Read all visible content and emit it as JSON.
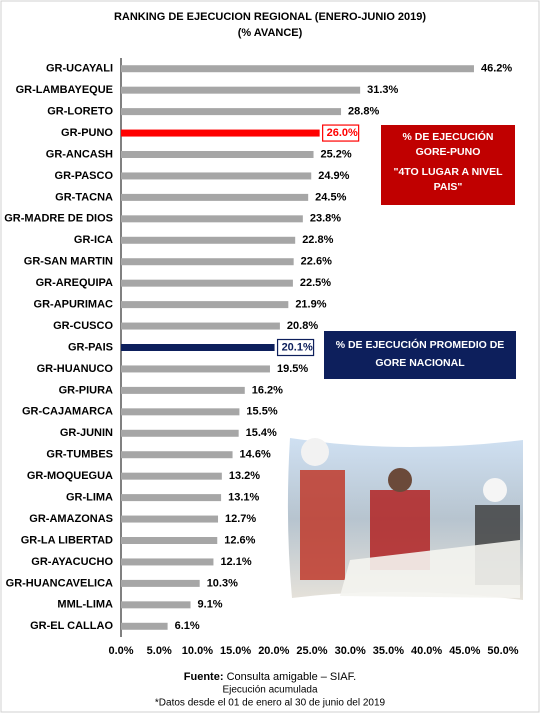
{
  "chart_data": {
    "type": "bar",
    "orientation": "horizontal",
    "title": "RANKING DE EJECUCION REGIONAL (ENERO-JUNIO 2019)",
    "subtitle": "(% AVANCE)",
    "categories": [
      "GR-UCAYALI",
      "GR-LAMBAYEQUE",
      "GR-LORETO",
      "GR-PUNO",
      "GR-ANCASH",
      "GR-PASCO",
      "GR-TACNA",
      "GR-MADRE DE DIOS",
      "GR-ICA",
      "GR-SAN MARTIN",
      "GR-AREQUIPA",
      "GR-APURIMAC",
      "GR-CUSCO",
      "GR-PAIS",
      "GR-HUANUCO",
      "GR-PIURA",
      "GR-CAJAMARCA",
      "GR-JUNIN",
      "GR-TUMBES",
      "GR-MOQUEGUA",
      "GR-LIMA",
      "GR-AMAZONAS",
      "GR-LA LIBERTAD",
      "GR-AYACUCHO",
      "GR-HUANCAVELICA",
      "MML-LIMA",
      "GR-EL CALLAO"
    ],
    "values": [
      46.2,
      31.3,
      28.8,
      26.0,
      25.2,
      24.9,
      24.5,
      23.8,
      22.8,
      22.6,
      22.5,
      21.9,
      20.8,
      20.1,
      19.5,
      16.2,
      15.5,
      15.4,
      14.6,
      13.2,
      13.1,
      12.7,
      12.6,
      12.1,
      10.3,
      9.1,
      6.1
    ],
    "value_labels": [
      "46.2%",
      "31.3%",
      "28.8%",
      "26.0%",
      "25.2%",
      "24.9%",
      "24.5%",
      "23.8%",
      "22.8%",
      "22.6%",
      "22.5%",
      "21.9%",
      "20.8%",
      "20.1%",
      "19.5%",
      "16.2%",
      "15.5%",
      "15.4%",
      "14.6%",
      "13.2%",
      "13.1%",
      "12.7%",
      "12.6%",
      "12.1%",
      "10.3%",
      "9.1%",
      "6.1%"
    ],
    "color": "#a6a6a6",
    "colors": [
      "#a6a6a6",
      "#a6a6a6",
      "#a6a6a6",
      "#ff0000",
      "#a6a6a6",
      "#a6a6a6",
      "#a6a6a6",
      "#a6a6a6",
      "#a6a6a6",
      "#a6a6a6",
      "#a6a6a6",
      "#a6a6a6",
      "#a6a6a6",
      "#0d1f5c",
      "#a6a6a6",
      "#a6a6a6",
      "#a6a6a6",
      "#a6a6a6",
      "#a6a6a6",
      "#a6a6a6",
      "#a6a6a6",
      "#a6a6a6",
      "#a6a6a6",
      "#a6a6a6",
      "#a6a6a6",
      "#a6a6a6",
      "#a6a6a6"
    ],
    "xlim": [
      0,
      50
    ],
    "xticks": [
      {
        "value": 0,
        "label": "0.0%"
      },
      {
        "value": 5,
        "label": "5.0%"
      },
      {
        "value": 10,
        "label": "10.0%"
      },
      {
        "value": 15,
        "label": "15.0%"
      },
      {
        "value": 20,
        "label": "20.0%"
      },
      {
        "value": 25,
        "label": "25.0%"
      },
      {
        "value": 30,
        "label": "30.0%"
      },
      {
        "value": 35,
        "label": "35.0%"
      },
      {
        "value": 40,
        "label": "40.0%"
      },
      {
        "value": 45,
        "label": "45.0%"
      },
      {
        "value": 50,
        "label": "50.0%"
      }
    ],
    "annotations": [
      {
        "lines": [
          "% DE EJECUCIÓN",
          "GORE-PUNO",
          "\"4TO LUGAR A NIVEL",
          "PAIS\""
        ],
        "color": "#c00000"
      },
      {
        "lines": [
          "% DE EJECUCIÓN PROMEDIO DE",
          "GORE NACIONAL"
        ],
        "color": "#0d1f5c"
      }
    ],
    "source": {
      "label": "Fuente:",
      "text": "Consulta amigable – SIAF."
    },
    "notes": [
      "Ejecución acumulada",
      "*Datos desde el 01 de enero al 30 de junio del 2019"
    ]
  }
}
